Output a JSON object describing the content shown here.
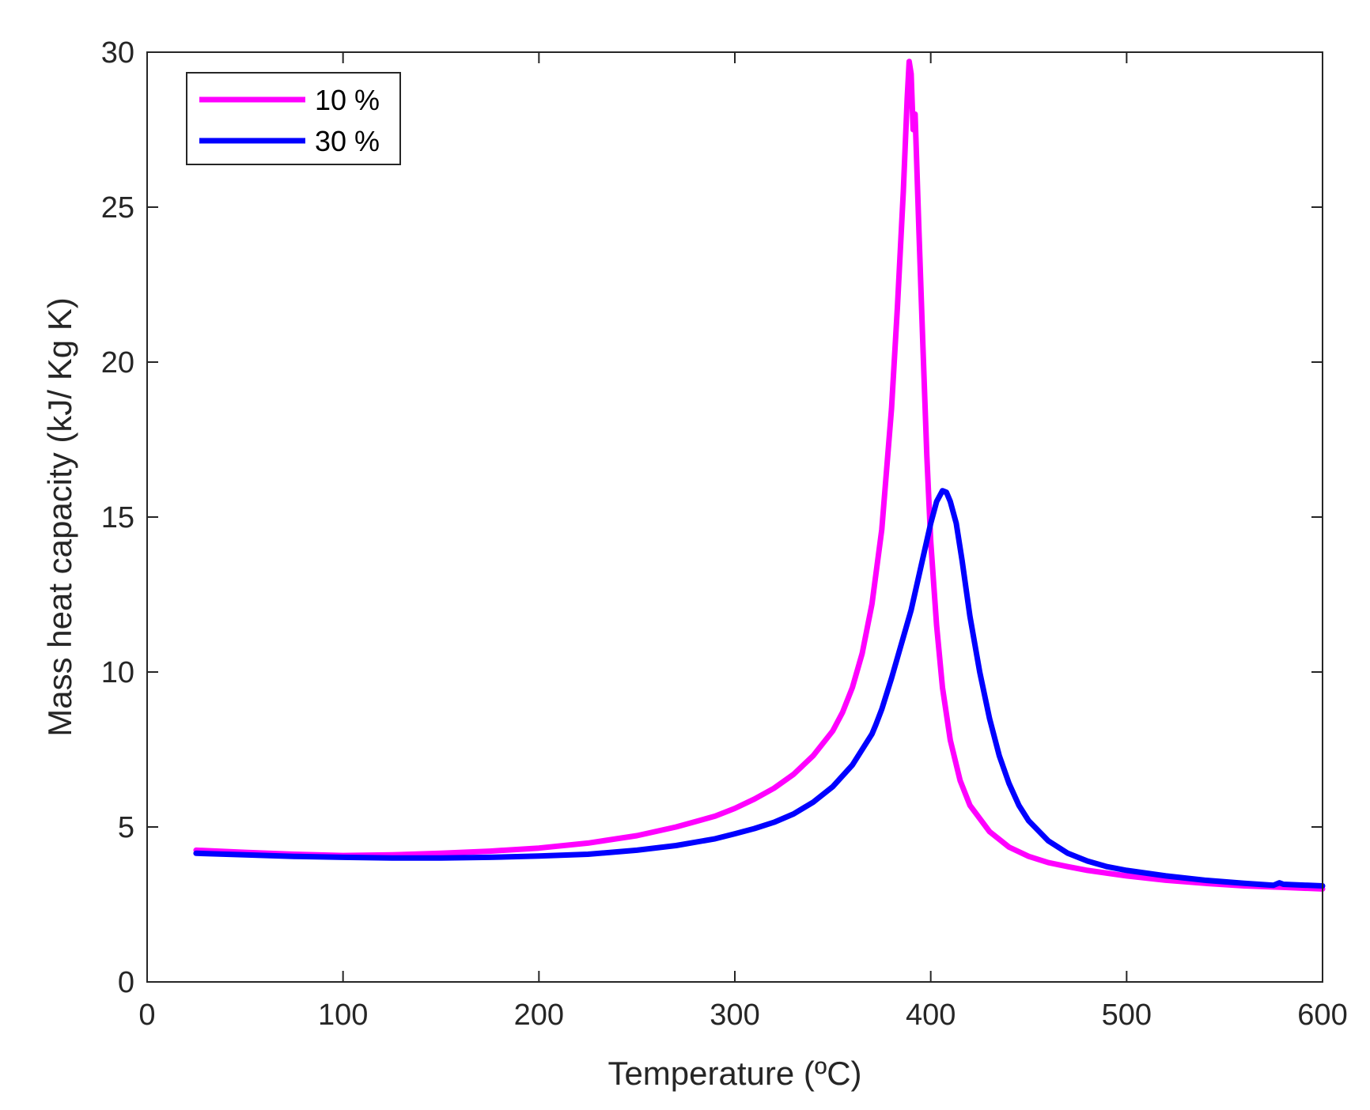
{
  "chart_data": {
    "type": "line",
    "title": "",
    "xlabel": "Temperature (ºC)",
    "ylabel": "Mass heat capacity (kJ/ Kg K)",
    "xlim": [
      0,
      600
    ],
    "ylim": [
      0,
      30
    ],
    "xticks": [
      0,
      100,
      200,
      300,
      400,
      500,
      600
    ],
    "yticks": [
      0,
      5,
      10,
      15,
      20,
      25,
      30
    ],
    "xtick_labels": [
      "0",
      "100",
      "200",
      "300",
      "400",
      "500",
      "600"
    ],
    "ytick_labels": [
      "0",
      "5",
      "10",
      "15",
      "20",
      "25",
      "30"
    ],
    "grid": false,
    "legend_position": "top-left",
    "series": [
      {
        "name": "10 %",
        "color": "#ff00ff",
        "x": [
          25,
          50,
          75,
          100,
          125,
          150,
          175,
          200,
          225,
          250,
          270,
          290,
          300,
          310,
          320,
          330,
          340,
          350,
          355,
          360,
          365,
          370,
          375,
          380,
          383,
          386,
          388,
          389,
          390,
          391,
          392,
          394,
          396,
          398,
          400,
          403,
          406,
          410,
          415,
          420,
          430,
          440,
          450,
          460,
          470,
          480,
          500,
          520,
          540,
          560,
          580,
          600
        ],
        "y": [
          4.25,
          4.18,
          4.12,
          4.08,
          4.1,
          4.15,
          4.22,
          4.32,
          4.48,
          4.72,
          5.0,
          5.35,
          5.6,
          5.9,
          6.25,
          6.7,
          7.3,
          8.1,
          8.7,
          9.5,
          10.6,
          12.2,
          14.6,
          18.5,
          21.8,
          25.5,
          28.5,
          29.7,
          29.3,
          27.5,
          28.0,
          24.2,
          20.5,
          17.0,
          14.2,
          11.5,
          9.5,
          7.8,
          6.5,
          5.7,
          4.85,
          4.35,
          4.05,
          3.85,
          3.72,
          3.6,
          3.42,
          3.28,
          3.18,
          3.1,
          3.05,
          3.0
        ]
      },
      {
        "name": "30 %",
        "color": "#0000ff",
        "x": [
          25,
          50,
          75,
          100,
          125,
          150,
          175,
          200,
          225,
          250,
          270,
          290,
          300,
          310,
          320,
          330,
          340,
          350,
          360,
          365,
          370,
          372,
          375,
          380,
          385,
          390,
          395,
          400,
          403,
          406,
          408,
          410,
          413,
          416,
          420,
          425,
          430,
          435,
          440,
          445,
          450,
          460,
          470,
          480,
          490,
          500,
          520,
          540,
          560,
          575,
          578,
          580,
          600
        ],
        "y": [
          4.15,
          4.1,
          4.05,
          4.02,
          4.0,
          4.0,
          4.02,
          4.06,
          4.12,
          4.25,
          4.4,
          4.62,
          4.78,
          4.95,
          5.15,
          5.42,
          5.8,
          6.3,
          7.0,
          7.5,
          8.0,
          8.3,
          8.8,
          9.8,
          10.9,
          12.0,
          13.4,
          14.8,
          15.5,
          15.85,
          15.8,
          15.5,
          14.8,
          13.6,
          11.8,
          10.0,
          8.5,
          7.3,
          6.4,
          5.7,
          5.2,
          4.55,
          4.15,
          3.9,
          3.72,
          3.6,
          3.42,
          3.28,
          3.18,
          3.12,
          3.2,
          3.15,
          3.1
        ]
      }
    ]
  }
}
